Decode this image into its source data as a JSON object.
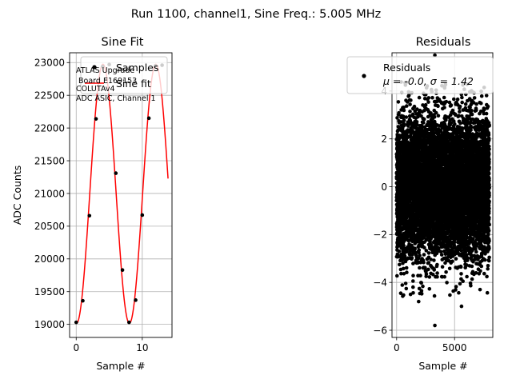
{
  "suptitle": "Run 1100, channel1, Sine Freq.: 5.005 MHz",
  "chart_data": [
    {
      "type": "line",
      "title": "Sine Fit",
      "xlabel": "Sample #",
      "ylabel": "ADC Counts",
      "xlim": [
        -1,
        14.5
      ],
      "ylim": [
        18800,
        23150
      ],
      "xticks": [
        0,
        10
      ],
      "yticks": [
        19000,
        19500,
        20000,
        20500,
        21000,
        21500,
        22000,
        22500,
        23000
      ],
      "grid": true,
      "legend_position": "top-right",
      "annotation": [
        "ATLAS Upgrade",
        " Board E169153",
        "COLUTAv4",
        "ADC ASIC, Channel 1"
      ],
      "series": [
        {
          "name": "Samples",
          "kind": "scatter",
          "color": "#000000",
          "x": [
            0,
            1,
            2,
            3,
            4,
            5,
            6,
            7,
            8,
            9,
            10,
            11,
            12,
            13
          ],
          "y": [
            19030,
            19360,
            20660,
            22140,
            22940,
            22970,
            21310,
            19830,
            19030,
            19370,
            20670,
            22150,
            22950,
            22960
          ]
        },
        {
          "name": "Sine fit",
          "kind": "line",
          "color": "#ff0000",
          "model": {
            "offset": 20995,
            "amplitude": 1980,
            "period": 8.0,
            "phase_x": 2.05
          },
          "x_range": [
            0,
            13.9
          ]
        }
      ]
    },
    {
      "type": "scatter",
      "title": "Residuals",
      "xlabel": "Sample #",
      "xlim": [
        -400,
        8300
      ],
      "ylim": [
        -6.3,
        5.6
      ],
      "xticks": [
        0,
        5000
      ],
      "yticks": [
        -6,
        -4,
        -2,
        0,
        2,
        4
      ],
      "grid": true,
      "legend_position": "top",
      "series": [
        {
          "name": "Residuals",
          "stats_label": "μ = -0.0, σ = 1.42",
          "color": "#000000",
          "n_points": 8000,
          "mean": 0.0,
          "std": 1.42,
          "highlighted_points": [
            [
              3300,
              5.5
            ],
            [
              3300,
              -5.8
            ],
            [
              5600,
              -5.0
            ],
            [
              1900,
              -4.8
            ],
            [
              1200,
              -4.5
            ],
            [
              7200,
              -4.3
            ]
          ]
        }
      ]
    }
  ]
}
